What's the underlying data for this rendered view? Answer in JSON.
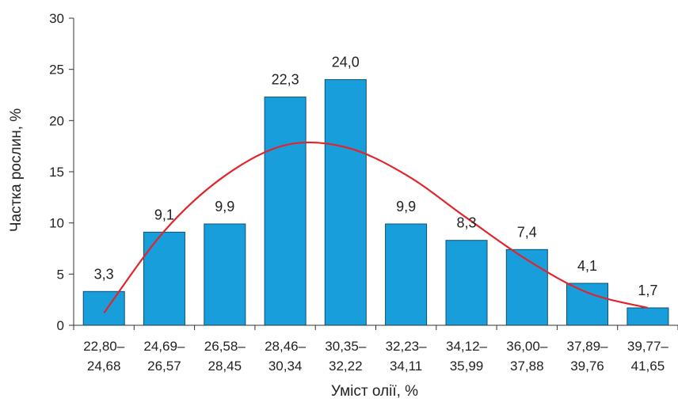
{
  "chart_data": {
    "type": "bar",
    "xlabel": "Уміст олії, %",
    "ylabel": "Частка рослин, %",
    "ylim": [
      0,
      30
    ],
    "yticks": [
      0,
      5,
      10,
      15,
      20,
      25,
      30
    ],
    "categories": [
      [
        "22,80–",
        "24,68"
      ],
      [
        "24,69–",
        "26,57"
      ],
      [
        "26,58–",
        "28,45"
      ],
      [
        "28,46–",
        "30,34"
      ],
      [
        "30,35–",
        "32,22"
      ],
      [
        "32,23–",
        "34,11"
      ],
      [
        "34,12–",
        "35,99"
      ],
      [
        "36,00–",
        "37,88"
      ],
      [
        "37,89–",
        "39,76"
      ],
      [
        "39,77–",
        "41,65"
      ]
    ],
    "values": [
      3.3,
      9.1,
      9.9,
      22.3,
      24.0,
      9.9,
      8.3,
      7.4,
      4.1,
      1.7
    ],
    "data_labels": [
      "3,3",
      "9,1",
      "9,9",
      "22,3",
      "24,0",
      "9,9",
      "8,3",
      "7,4",
      "4,1",
      "1,7"
    ],
    "trend_curve": [
      1.2,
      9.2,
      14.6,
      17.6,
      17.4,
      14.7,
      10.5,
      6.4,
      3.2,
      1.7
    ],
    "grid": false,
    "colors": {
      "bar": "#189fdb",
      "bar_edge": "#0d4f73",
      "curve": "#e0252c",
      "axis": "#333333"
    }
  }
}
